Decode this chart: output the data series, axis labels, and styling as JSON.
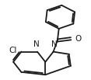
{
  "bg_color": "#ffffff",
  "line_color": "#1a1a1a",
  "lw": 1.3,
  "dbo": 0.018,
  "fs": 7.5,
  "cl_label": "Cl",
  "n_label": "N",
  "o_label": "O"
}
